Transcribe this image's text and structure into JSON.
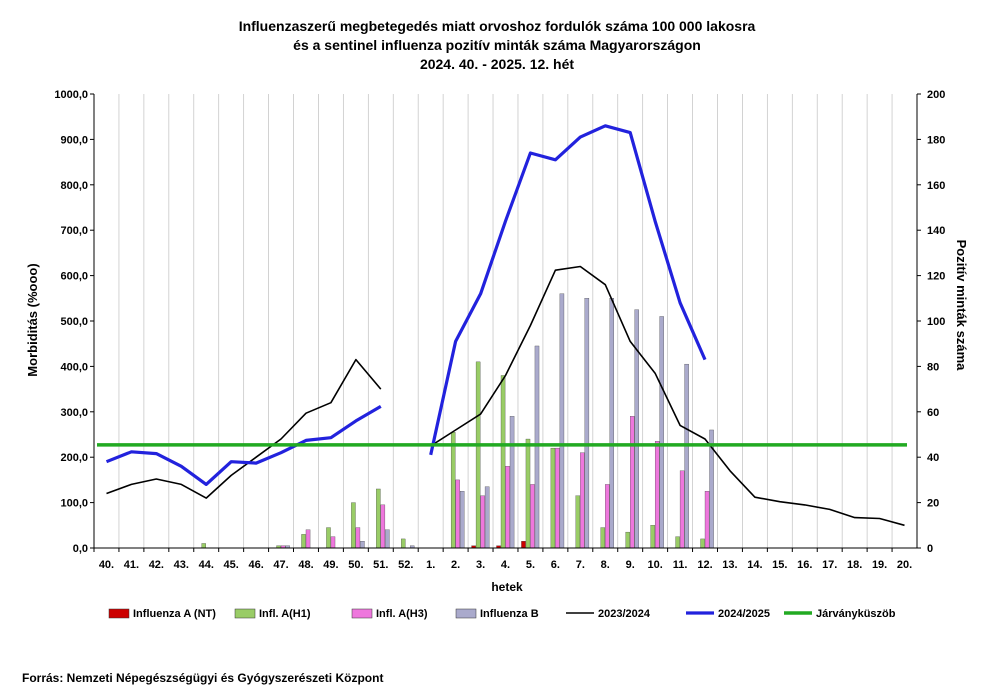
{
  "chart_data": {
    "type": "bar",
    "title_lines": [
      "Influenzaszerű megbetegedés miatt orvoshoz fordulók száma 100 000 lakosra",
      "és a sentinel influenza pozitív minták száma Magyarországon",
      "2024. 40. - 2025. 12. hét"
    ],
    "xlabel": "hetek",
    "ylabel_left": "Morbiditás (%ooo)",
    "ylabel_right": "Pozitív minták száma",
    "ylim_left": [
      0,
      1000
    ],
    "ylim_right": [
      0,
      200
    ],
    "yticks_left": [
      "0,0",
      "100,0",
      "200,0",
      "300,0",
      "400,0",
      "500,0",
      "600,0",
      "700,0",
      "800,0",
      "900,0",
      "1000,0"
    ],
    "yticks_right": [
      "0",
      "20",
      "40",
      "60",
      "80",
      "100",
      "120",
      "140",
      "160",
      "180",
      "200"
    ],
    "grid": "vertical",
    "legend_position": "bottom",
    "categories": [
      "40.",
      "41.",
      "42.",
      "43.",
      "44.",
      "45.",
      "46.",
      "47.",
      "48.",
      "49.",
      "50.",
      "51.",
      "52.",
      "1.",
      "2.",
      "3.",
      "4.",
      "5.",
      "6.",
      "7.",
      "8.",
      "9.",
      "10.",
      "11.",
      "12.",
      "13.",
      "14.",
      "15.",
      "16.",
      "17.",
      "18.",
      "19.",
      "20."
    ],
    "bar_series": [
      {
        "name": "Influenza A (NT)",
        "color": "#cc0000",
        "axis": "right",
        "values": [
          0,
          0,
          0,
          0,
          0,
          0,
          0,
          0,
          0,
          0,
          0,
          0,
          0,
          0,
          0,
          1,
          1,
          3,
          0,
          0,
          0,
          0,
          0,
          0,
          0,
          null,
          null,
          null,
          null,
          null,
          null,
          null,
          null
        ]
      },
      {
        "name": "Infl. A(H1)",
        "color": "#99cc66",
        "axis": "right",
        "values": [
          0,
          0,
          0,
          0,
          2,
          0,
          0,
          1,
          6,
          9,
          20,
          26,
          4,
          0,
          51,
          82,
          76,
          48,
          44,
          23,
          9,
          7,
          10,
          5,
          4,
          null,
          null,
          null,
          null,
          null,
          null,
          null,
          null
        ]
      },
      {
        "name": "Infl. A(H3)",
        "color": "#ee77dd",
        "axis": "right",
        "values": [
          0,
          0,
          0,
          0,
          0,
          0,
          0,
          1,
          8,
          5,
          9,
          19,
          0,
          0,
          30,
          23,
          36,
          28,
          44,
          42,
          28,
          58,
          47,
          34,
          25,
          null,
          null,
          null,
          null,
          null,
          null,
          null,
          null
        ]
      },
      {
        "name": "Influenza B",
        "color": "#aaaacc",
        "axis": "right",
        "values": [
          0,
          0,
          0,
          0,
          0,
          0,
          0,
          1,
          0,
          0,
          3,
          8,
          1,
          0,
          25,
          27,
          58,
          89,
          112,
          110,
          110,
          105,
          102,
          81,
          52,
          null,
          null,
          null,
          null,
          null,
          null,
          null,
          null
        ]
      }
    ],
    "line_series": [
      {
        "name": "2023/2024",
        "color": "#000000",
        "axis": "left",
        "values": [
          120,
          140,
          152,
          140,
          110,
          160,
          200,
          240,
          297,
          320,
          415,
          350,
          null,
          225,
          260,
          295,
          380,
          490,
          612,
          620,
          580,
          455,
          385,
          270,
          240,
          170,
          112,
          102,
          95,
          85,
          67,
          65,
          50
        ]
      },
      {
        "name": "2024/2025",
        "color": "#2222dd",
        "axis": "left",
        "values": [
          190,
          212,
          208,
          180,
          140,
          190,
          187,
          210,
          237,
          243,
          280,
          312,
          null,
          205,
          455,
          560,
          720,
          870,
          855,
          905,
          930,
          915,
          720,
          540,
          415,
          null,
          null,
          null,
          null,
          null,
          null,
          null,
          null
        ]
      },
      {
        "name": "Járványküszöb",
        "color": "#22aa22",
        "axis": "left",
        "values": [
          227,
          227,
          227,
          227,
          227,
          227,
          227,
          227,
          227,
          227,
          227,
          227,
          227,
          227,
          227,
          227,
          227,
          227,
          227,
          227,
          227,
          227,
          227,
          227,
          227,
          227,
          227,
          227,
          227,
          227,
          227,
          227,
          227
        ]
      }
    ],
    "source": "Forrás: Nemzeti Népegészségügyi és Gyógyszerészeti Központ"
  }
}
